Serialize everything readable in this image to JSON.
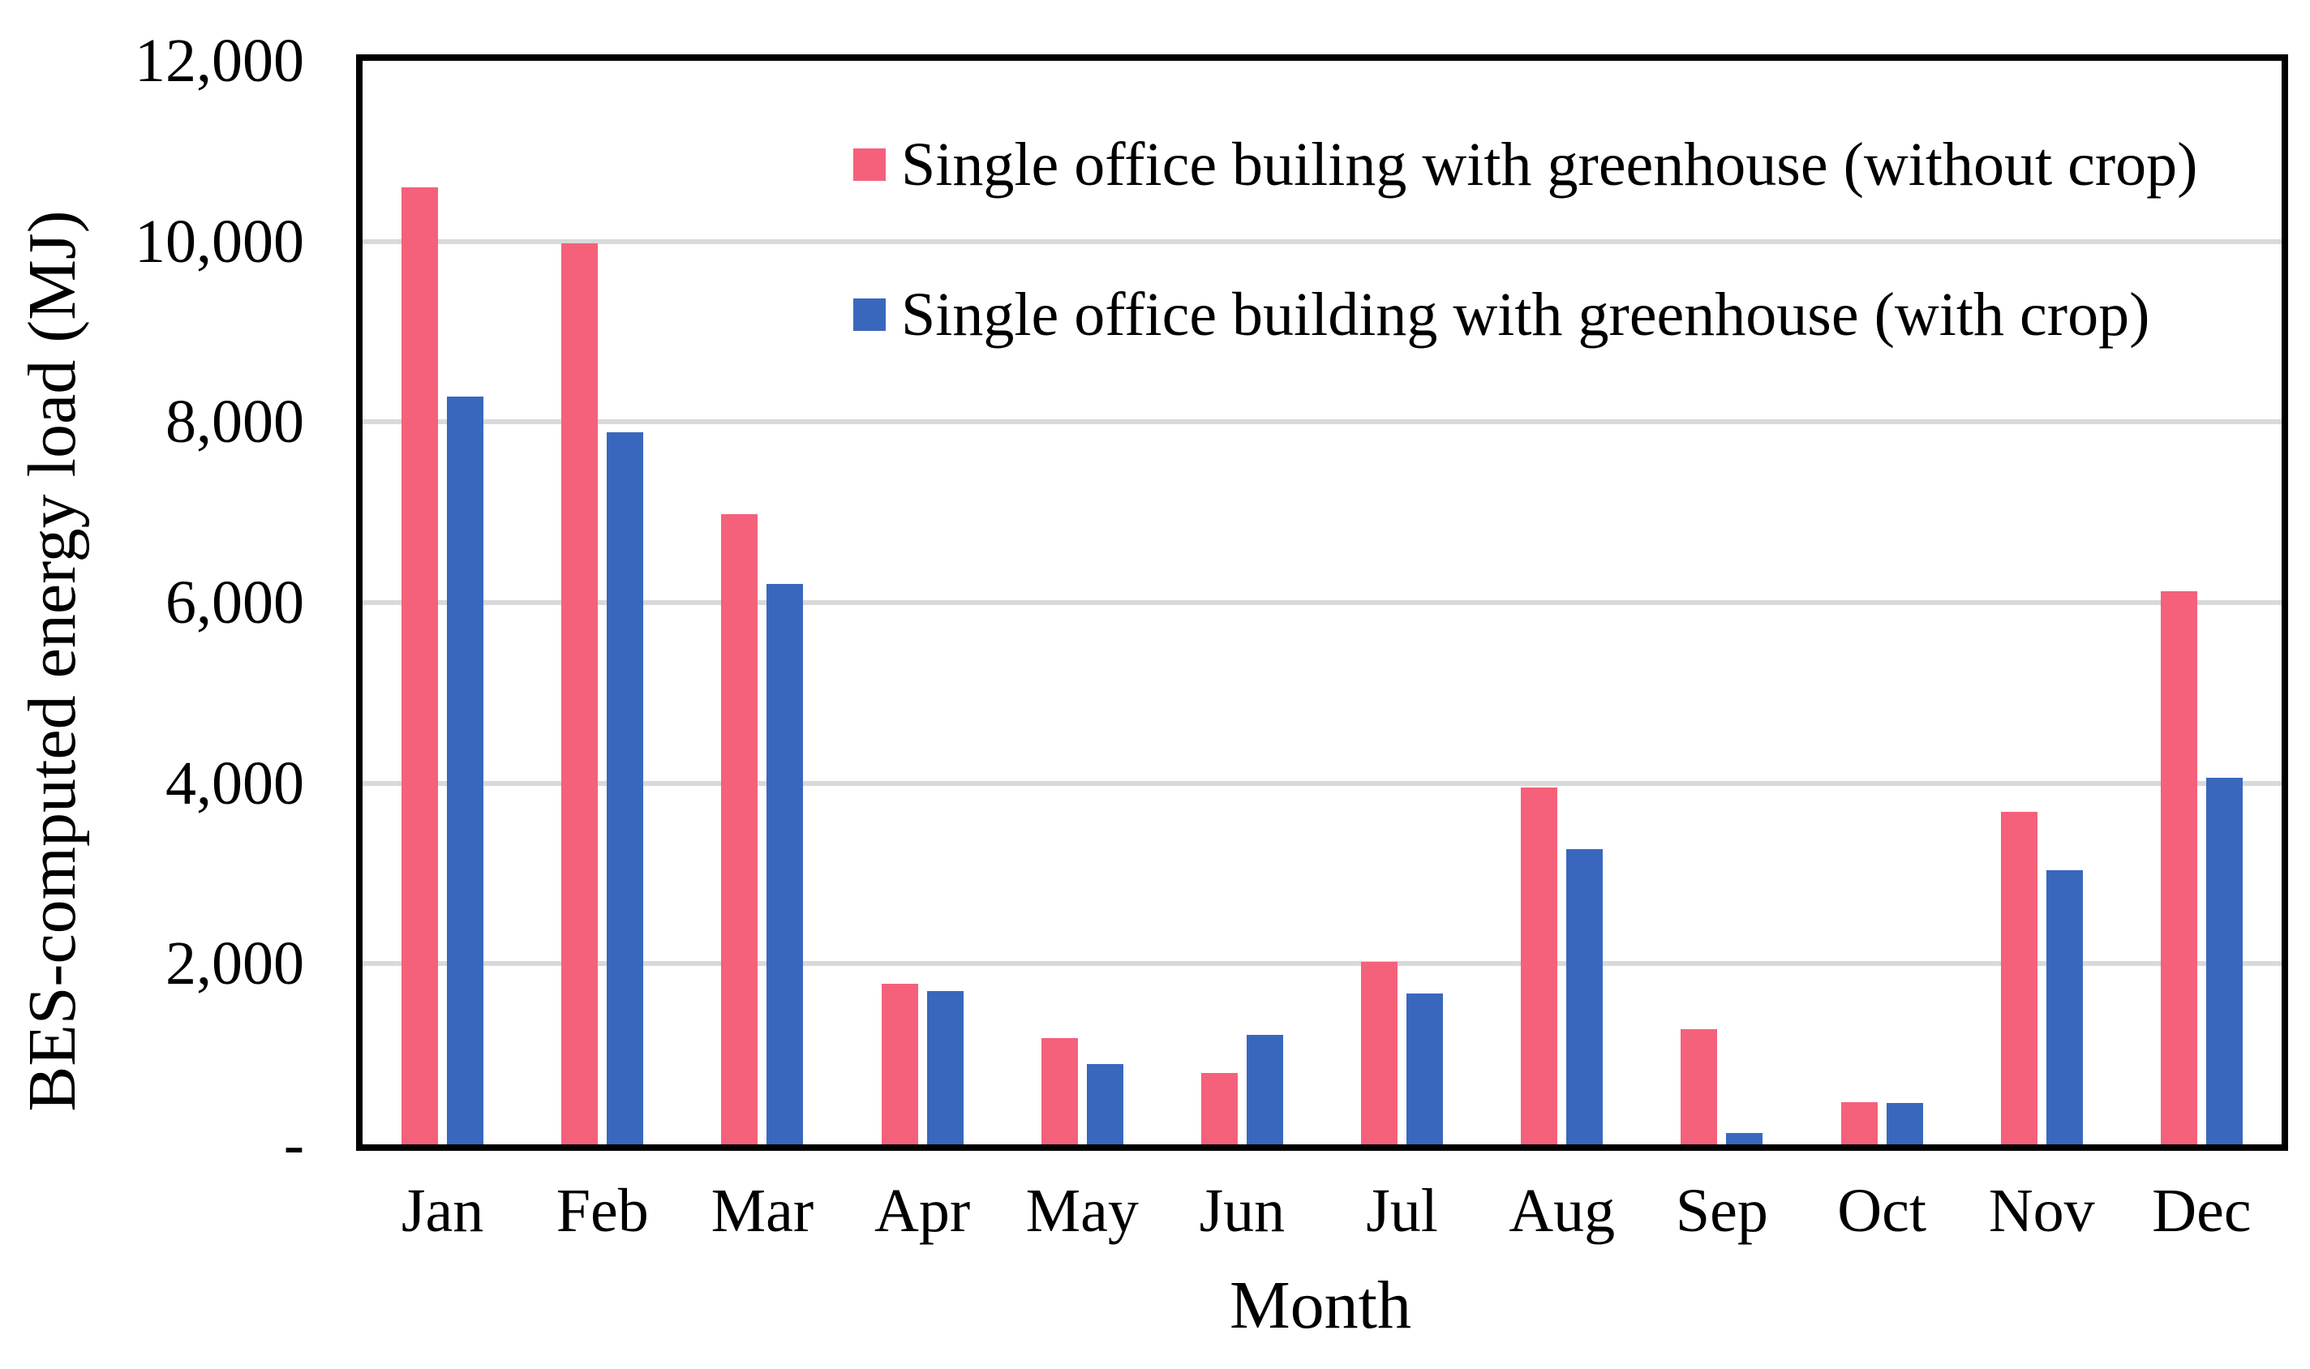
{
  "chart_data": {
    "type": "bar",
    "title": "",
    "categories": [
      "Jan",
      "Feb",
      "Mar",
      "Apr",
      "May",
      "Jun",
      "Jul",
      "Aug",
      "Sep",
      "Oct",
      "Nov",
      "Dec"
    ],
    "series": [
      {
        "name": "Single office builing with greenhouse (without crop)",
        "color": "#F5617A",
        "values": [
          10600,
          9980,
          6980,
          1780,
          1180,
          790,
          2020,
          3950,
          1280,
          470,
          3680,
          6130
        ]
      },
      {
        "name": "Single office building with greenhouse (with crop)",
        "color": "#3A67BE",
        "values": [
          8280,
          7890,
          6210,
          1700,
          890,
          1210,
          1670,
          3270,
          130,
          460,
          3040,
          4060
        ]
      }
    ],
    "xlabel": "Month",
    "ylabel": "BES-computed energy load (MJ)",
    "ylim": [
      0,
      12000
    ],
    "ytick_step": 2000,
    "yticks": [
      {
        "value": 0,
        "label": "-"
      },
      {
        "value": 2000,
        "label": "2,000"
      },
      {
        "value": 4000,
        "label": "4,000"
      },
      {
        "value": 6000,
        "label": "6,000"
      },
      {
        "value": 8000,
        "label": "8,000"
      },
      {
        "value": 10000,
        "label": "10,000"
      },
      {
        "value": 12000,
        "label": "12,000"
      }
    ],
    "grid": true,
    "gridline_color": "#D9D9D9",
    "frame_color": "#000000",
    "legend_position": "inside-top"
  }
}
